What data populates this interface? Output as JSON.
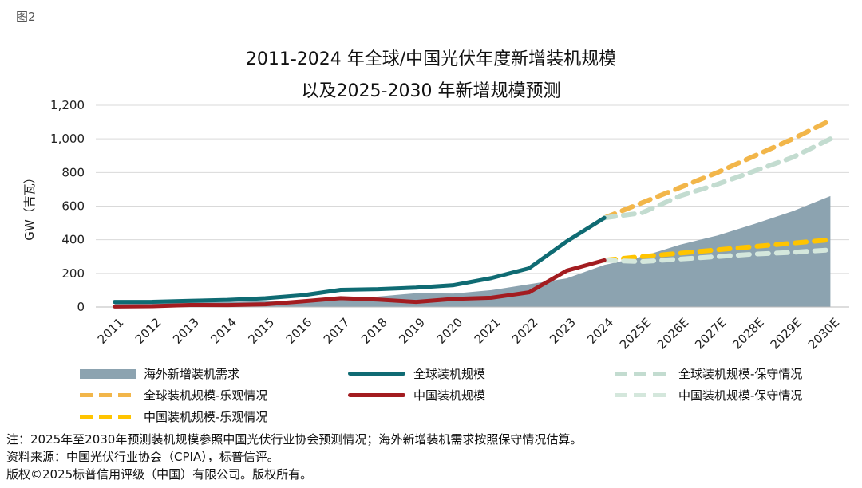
{
  "figure_label": "图2",
  "chart_data": {
    "type": "line",
    "title_line1": "2011-2024 年全球/中国光伏年度新增装机规模",
    "title_line2": "以及2025-2030 年新增规模预测",
    "ylabel": "GW（吉瓦）",
    "ylim": [
      0,
      1200
    ],
    "yticks": [
      0,
      200,
      400,
      600,
      800,
      1000,
      1200
    ],
    "ytick_labels": [
      "0",
      "200",
      "400",
      "600",
      "800",
      "1,000",
      "1,200"
    ],
    "categories": [
      "2011",
      "2012",
      "2013",
      "2014",
      "2015",
      "2016",
      "2017",
      "2018",
      "2019",
      "2020",
      "2021",
      "2022",
      "2023",
      "2024",
      "2025E",
      "2026E",
      "2027E",
      "2028E",
      "2029E",
      "2030E"
    ],
    "series": [
      {
        "name": "海外新增装机需求",
        "kind": "area",
        "color": "#8ca3b0",
        "values": [
          25,
          27,
          28,
          30,
          35,
          40,
          48,
          62,
          82,
          80,
          100,
          135,
          170,
          250,
          300,
          370,
          425,
          495,
          570,
          660
        ]
      },
      {
        "name": "全球装机规模",
        "kind": "line",
        "color": "#0f6b73",
        "dashed": false,
        "values": [
          30,
          31,
          37,
          42,
          52,
          70,
          102,
          106,
          115,
          130,
          172,
          230,
          390,
          530,
          null,
          null,
          null,
          null,
          null,
          null
        ]
      },
      {
        "name": "中国装机规模",
        "kind": "line",
        "color": "#a31c20",
        "dashed": false,
        "values": [
          3,
          5,
          12,
          11,
          16,
          34,
          53,
          44,
          30,
          48,
          55,
          87,
          216,
          278,
          null,
          null,
          null,
          null,
          null,
          null
        ]
      },
      {
        "name": "全球装机规模-乐观情况",
        "kind": "line",
        "color": "#f2b64a",
        "dashed": true,
        "values": [
          null,
          null,
          null,
          null,
          null,
          null,
          null,
          null,
          null,
          null,
          null,
          null,
          null,
          530,
          620,
          710,
          800,
          900,
          1000,
          1110
        ]
      },
      {
        "name": "全球装机规模-保守情况",
        "kind": "line",
        "color": "#c3dcd0",
        "dashed": true,
        "values": [
          null,
          null,
          null,
          null,
          null,
          null,
          null,
          null,
          null,
          null,
          null,
          null,
          null,
          530,
          560,
          660,
          730,
          810,
          890,
          1000
        ]
      },
      {
        "name": "中国装机规模-乐观情况",
        "kind": "line",
        "color": "#ffc400",
        "dashed": true,
        "values": [
          null,
          null,
          null,
          null,
          null,
          null,
          null,
          null,
          null,
          null,
          null,
          null,
          null,
          278,
          300,
          320,
          340,
          360,
          380,
          400
        ]
      },
      {
        "name": "中国装机规模-保守情况",
        "kind": "line",
        "color": "#d4e7dc",
        "dashed": true,
        "values": [
          null,
          null,
          null,
          null,
          null,
          null,
          null,
          null,
          null,
          null,
          null,
          null,
          null,
          278,
          270,
          285,
          300,
          315,
          325,
          340
        ]
      }
    ],
    "grid": true,
    "legend_position": "bottom"
  },
  "legend": {
    "overseas": "海外新增装机需求",
    "global": "全球装机规模",
    "global_conservative": "全球装机规模-保守情况",
    "global_optimistic": "全球装机规模-乐观情况",
    "china": "中国装机规模",
    "china_conservative": "中国装机规模-保守情况",
    "china_optimistic": "中国装机规模-乐观情况"
  },
  "notes": {
    "note": "注：2025年至2030年预测装机规模参照中国光伏行业协会预测情况；海外新增装机需求按照保守情况估算。",
    "source": "资料来源：中国光伏行业协会（CPIA），标普信评。",
    "copyright": "版权©2025标普信用评级（中国）有限公司。版权所有。"
  }
}
